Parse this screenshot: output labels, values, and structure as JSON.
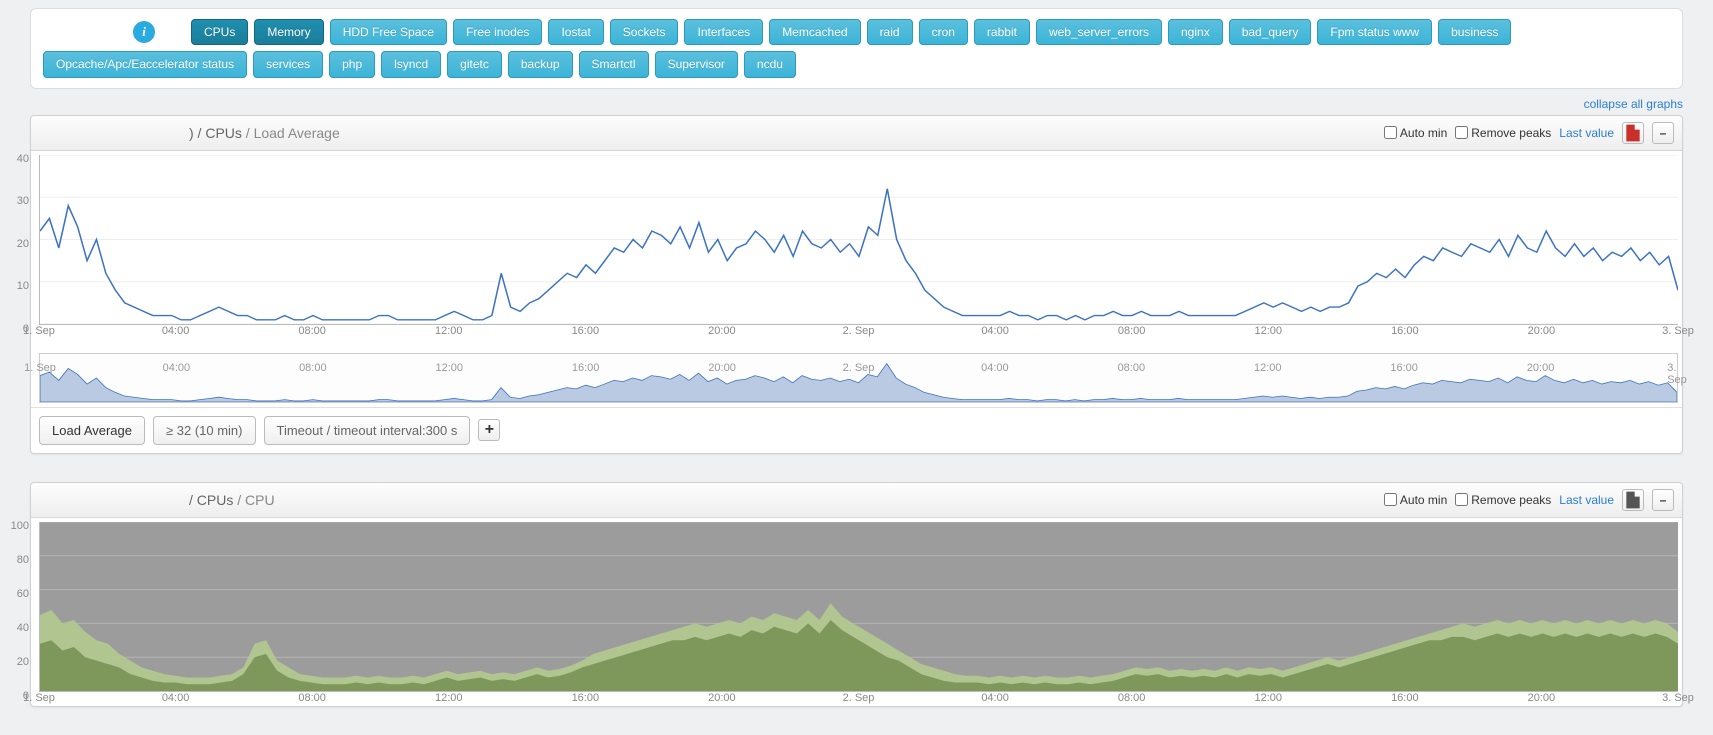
{
  "nav": {
    "info_icon": "i",
    "row1": [
      {
        "label": "CPUs",
        "active": true
      },
      {
        "label": "Memory",
        "active": true
      },
      {
        "label": "HDD Free Space"
      },
      {
        "label": "Free inodes"
      },
      {
        "label": "Iostat"
      },
      {
        "label": "Sockets"
      },
      {
        "label": "Interfaces"
      },
      {
        "label": "Memcached"
      },
      {
        "label": "raid"
      },
      {
        "label": "cron"
      },
      {
        "label": "rabbit"
      },
      {
        "label": "web_server_errors"
      },
      {
        "label": "nginx"
      },
      {
        "label": "bad_query"
      },
      {
        "label": "Fpm status www"
      },
      {
        "label": "business"
      }
    ],
    "row2": [
      {
        "label": "Opcache/Apc/Eaccelerator status"
      },
      {
        "label": "services"
      },
      {
        "label": "php"
      },
      {
        "label": "lsyncd"
      },
      {
        "label": "gitetc"
      },
      {
        "label": "backup"
      },
      {
        "label": "Smartctl"
      },
      {
        "label": "Supervisor"
      },
      {
        "label": "ncdu"
      }
    ]
  },
  "collapse_link": "collapse all graphs",
  "controls": {
    "auto_min": "Auto min",
    "remove_peaks": "Remove peaks",
    "last_value": "Last value",
    "minus": "–",
    "plus": "+"
  },
  "chart1": {
    "title_prefix": ") / ",
    "title_mid": "CPUs",
    "title_suffix": " / Load Average",
    "y": {
      "min": 0,
      "max": 40,
      "ticks": [
        0,
        10,
        20,
        30,
        40
      ]
    },
    "x_labels": [
      "1. Sep",
      "04:00",
      "08:00",
      "12:00",
      "16:00",
      "20:00",
      "2. Sep",
      "04:00",
      "08:00",
      "12:00",
      "16:00",
      "20:00",
      "3. Sep"
    ],
    "line_color": "#3b72c4",
    "overview_fill": "#9bb4d6",
    "series": [
      22,
      25,
      18,
      28,
      23,
      15,
      20,
      12,
      8,
      5,
      4,
      3,
      2,
      2,
      2,
      1,
      1,
      2,
      3,
      4,
      3,
      2,
      2,
      1,
      1,
      1,
      2,
      1,
      1,
      2,
      1,
      1,
      1,
      1,
      1,
      1,
      2,
      2,
      1,
      1,
      1,
      1,
      1,
      2,
      3,
      2,
      1,
      1,
      2,
      12,
      4,
      3,
      5,
      6,
      8,
      10,
      12,
      11,
      14,
      12,
      15,
      18,
      17,
      20,
      18,
      22,
      21,
      19,
      23,
      18,
      24,
      17,
      20,
      15,
      18,
      19,
      22,
      20,
      17,
      21,
      16,
      22,
      19,
      18,
      20,
      17,
      19,
      16,
      23,
      21,
      32,
      20,
      15,
      12,
      8,
      6,
      4,
      3,
      2,
      2,
      2,
      2,
      2,
      3,
      2,
      2,
      1,
      2,
      2,
      1,
      2,
      1,
      2,
      2,
      3,
      2,
      2,
      3,
      2,
      2,
      2,
      3,
      2,
      2,
      2,
      2,
      2,
      2,
      3,
      4,
      5,
      4,
      5,
      4,
      3,
      4,
      3,
      4,
      4,
      5,
      9,
      10,
      12,
      11,
      13,
      11,
      14,
      16,
      15,
      18,
      17,
      16,
      19,
      18,
      17,
      20,
      16,
      21,
      18,
      17,
      22,
      18,
      16,
      19,
      16,
      18,
      15,
      17,
      16,
      18,
      15,
      17,
      14,
      16,
      8
    ],
    "bottom_bar": {
      "metric": "Load Average",
      "threshold": "≥ 32 (10 min)",
      "timeout": "Timeout / timeout interval:300 s"
    }
  },
  "chart2": {
    "title_prefix": " / ",
    "title_mid": "CPUs",
    "title_suffix": " / CPU",
    "y": {
      "min": 0,
      "max": 100,
      "ticks": [
        0,
        20,
        40,
        60,
        80,
        100
      ]
    },
    "x_labels": [
      "1. Sep",
      "04:00",
      "08:00",
      "12:00",
      "16:00",
      "20:00",
      "2. Sep",
      "04:00",
      "08:00",
      "12:00",
      "16:00",
      "20:00",
      "3. Sep"
    ],
    "bg_fill": "#9c9c9c",
    "light_fill": "#b1c78f",
    "dark_fill": "#7a9657",
    "series_light": [
      45,
      48,
      40,
      42,
      35,
      30,
      28,
      22,
      18,
      14,
      12,
      10,
      9,
      8,
      8,
      8,
      9,
      10,
      14,
      28,
      30,
      18,
      14,
      10,
      9,
      8,
      8,
      8,
      9,
      8,
      9,
      8,
      8,
      9,
      8,
      10,
      12,
      10,
      11,
      12,
      10,
      11,
      10,
      12,
      14,
      12,
      13,
      15,
      18,
      22,
      24,
      26,
      28,
      30,
      32,
      34,
      36,
      38,
      40,
      38,
      40,
      42,
      40,
      44,
      42,
      46,
      44,
      42,
      48,
      42,
      52,
      44,
      40,
      36,
      32,
      28,
      24,
      20,
      16,
      14,
      12,
      10,
      9,
      9,
      8,
      9,
      8,
      9,
      8,
      9,
      8,
      8,
      9,
      8,
      9,
      10,
      12,
      14,
      13,
      14,
      12,
      13,
      12,
      13,
      12,
      14,
      12,
      14,
      13,
      14,
      12,
      14,
      16,
      18,
      20,
      18,
      20,
      22,
      24,
      26,
      28,
      30,
      32,
      34,
      36,
      38,
      40,
      38,
      40,
      42,
      40,
      42,
      40,
      42,
      40,
      42,
      40,
      42,
      40,
      42,
      40,
      42,
      40,
      42,
      40,
      35
    ],
    "series_dark": [
      28,
      30,
      24,
      26,
      20,
      18,
      16,
      14,
      10,
      8,
      6,
      5,
      5,
      4,
      4,
      4,
      5,
      6,
      10,
      20,
      22,
      12,
      8,
      6,
      5,
      4,
      4,
      4,
      5,
      4,
      5,
      4,
      4,
      5,
      4,
      6,
      8,
      6,
      7,
      8,
      6,
      7,
      6,
      8,
      10,
      8,
      9,
      11,
      14,
      16,
      18,
      20,
      22,
      24,
      26,
      28,
      30,
      30,
      32,
      30,
      32,
      34,
      32,
      36,
      34,
      38,
      36,
      34,
      40,
      34,
      42,
      36,
      32,
      28,
      24,
      20,
      18,
      14,
      10,
      8,
      6,
      5,
      5,
      5,
      4,
      5,
      4,
      5,
      4,
      5,
      4,
      4,
      5,
      4,
      5,
      6,
      8,
      10,
      9,
      10,
      8,
      9,
      8,
      9,
      8,
      10,
      8,
      10,
      9,
      10,
      8,
      10,
      12,
      14,
      16,
      14,
      16,
      18,
      20,
      22,
      24,
      26,
      28,
      30,
      30,
      32,
      32,
      30,
      32,
      34,
      32,
      34,
      32,
      34,
      32,
      34,
      32,
      34,
      32,
      34,
      32,
      34,
      32,
      34,
      32,
      28
    ]
  },
  "colors": {
    "nav_bg": "#5bc0de",
    "nav_active": "#1f8fb0",
    "grid": "#e6e6e6",
    "text": "#333333",
    "link": "#2a7fd4"
  }
}
